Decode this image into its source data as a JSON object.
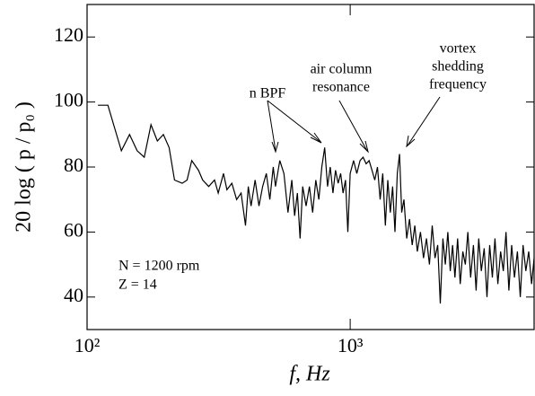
{
  "chart_data": {
    "type": "line",
    "y_label": "20 log ( p / p₀ )",
    "x_label": "f, Hz",
    "xlog": true,
    "xlim": [
      100,
      5000
    ],
    "xticks": [
      {
        "value": 100,
        "label": "10²"
      },
      {
        "value": 1000,
        "label": "10³"
      }
    ],
    "ylim": [
      30,
      130
    ],
    "yticks": [
      40,
      60,
      80,
      100,
      120
    ],
    "annotations": [
      {
        "lines": [
          "n BPF"
        ]
      },
      {
        "lines": [
          "air column",
          "resonance"
        ]
      },
      {
        "lines": [
          "vortex",
          "shedding",
          "frequency"
        ]
      },
      {
        "lines": [
          "N = 1200 rpm",
          "Z = 14"
        ]
      }
    ],
    "series": [
      {
        "color": "#000000",
        "x": [
          110,
          120,
          135,
          145,
          155,
          165,
          175,
          185,
          195,
          205,
          215,
          230,
          240,
          250,
          265,
          275,
          290,
          305,
          315,
          330,
          340,
          355,
          370,
          385,
          400,
          410,
          420,
          435,
          450,
          465,
          480,
          495,
          510,
          520,
          540,
          560,
          580,
          600,
          615,
          630,
          645,
          660,
          680,
          700,
          720,
          740,
          760,
          780,
          800,
          820,
          840,
          860,
          880,
          900,
          920,
          940,
          960,
          980,
          1000,
          1030,
          1060,
          1090,
          1120,
          1150,
          1180,
          1210,
          1240,
          1270,
          1300,
          1330,
          1360,
          1390,
          1420,
          1450,
          1480,
          1510,
          1540,
          1570,
          1600,
          1640,
          1680,
          1720,
          1760,
          1800,
          1850,
          1900,
          1950,
          2000,
          2050,
          2100,
          2150,
          2200,
          2250,
          2300,
          2350,
          2400,
          2450,
          2500,
          2560,
          2620,
          2680,
          2740,
          2800,
          2870,
          2940,
          3010,
          3080,
          3150,
          3230,
          3310,
          3390,
          3470,
          3550,
          3640,
          3730,
          3820,
          3910,
          4010,
          4110,
          4210,
          4320,
          4430,
          4540,
          4650,
          4770,
          4890,
          5000
        ],
        "values": [
          99,
          99,
          85,
          90,
          85,
          83,
          93,
          88,
          90,
          86,
          76,
          75,
          76,
          82,
          79,
          76,
          74,
          76,
          72,
          78,
          73,
          75,
          70,
          72,
          62,
          74,
          68,
          76,
          68,
          74,
          78,
          70,
          80,
          74,
          82,
          78,
          66,
          76,
          65,
          72,
          58,
          74,
          68,
          74,
          66,
          76,
          70,
          80,
          86,
          74,
          80,
          72,
          79,
          75,
          78,
          72,
          76,
          60,
          78,
          82,
          78,
          82,
          83,
          81,
          82,
          79,
          76,
          80,
          70,
          78,
          62,
          76,
          66,
          74,
          60,
          78,
          84,
          66,
          70,
          58,
          64,
          56,
          62,
          54,
          60,
          52,
          58,
          50,
          62,
          52,
          56,
          38,
          58,
          50,
          60,
          48,
          56,
          46,
          58,
          44,
          54,
          50,
          60,
          46,
          56,
          42,
          58,
          48,
          55,
          40,
          56,
          46,
          58,
          44,
          54,
          48,
          60,
          42,
          56,
          46,
          54,
          40,
          56,
          48,
          54,
          44,
          52
        ]
      }
    ]
  }
}
